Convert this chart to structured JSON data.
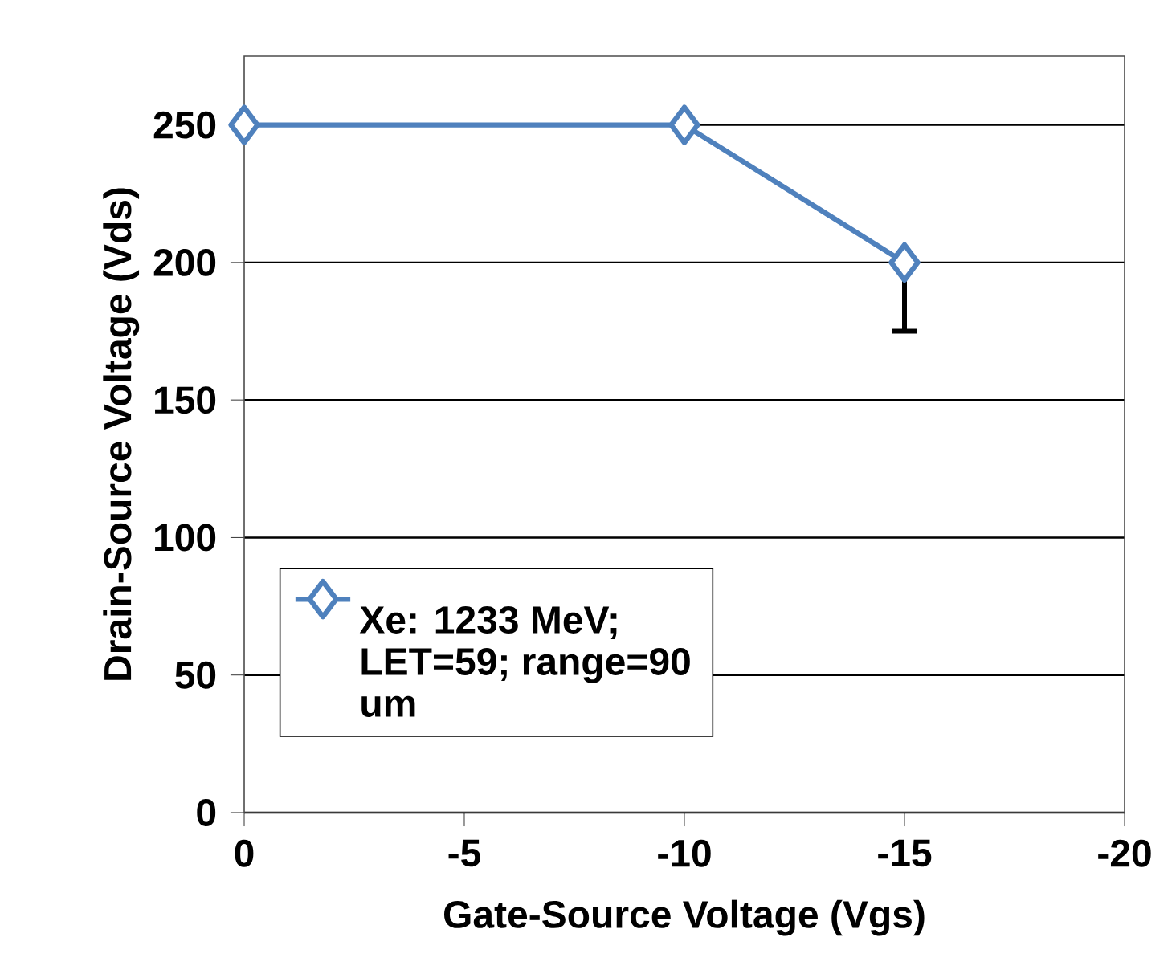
{
  "chart_data": {
    "type": "line",
    "xlabel": "Gate-Source Voltage (Vgs)",
    "ylabel": "Drain-Source Voltage (Vds)",
    "xlim": [
      0,
      -20
    ],
    "xticks": [
      0,
      -5,
      -10,
      -15,
      -20
    ],
    "ylim": [
      0,
      275
    ],
    "yticks": [
      0,
      50,
      100,
      150,
      200,
      250
    ],
    "grid": "y",
    "legend": "bottom left",
    "marker": "diamond",
    "line_style": "solid",
    "series": [
      {
        "name": "Xe: 1233 MeV; LET=59; range=90 um",
        "color": "#4f81bd",
        "x": [
          0,
          -10,
          -15
        ],
        "values": [
          250,
          250,
          200
        ],
        "errors": [
          null,
          null,
          [
            175,
            200
          ]
        ]
      }
    ]
  }
}
